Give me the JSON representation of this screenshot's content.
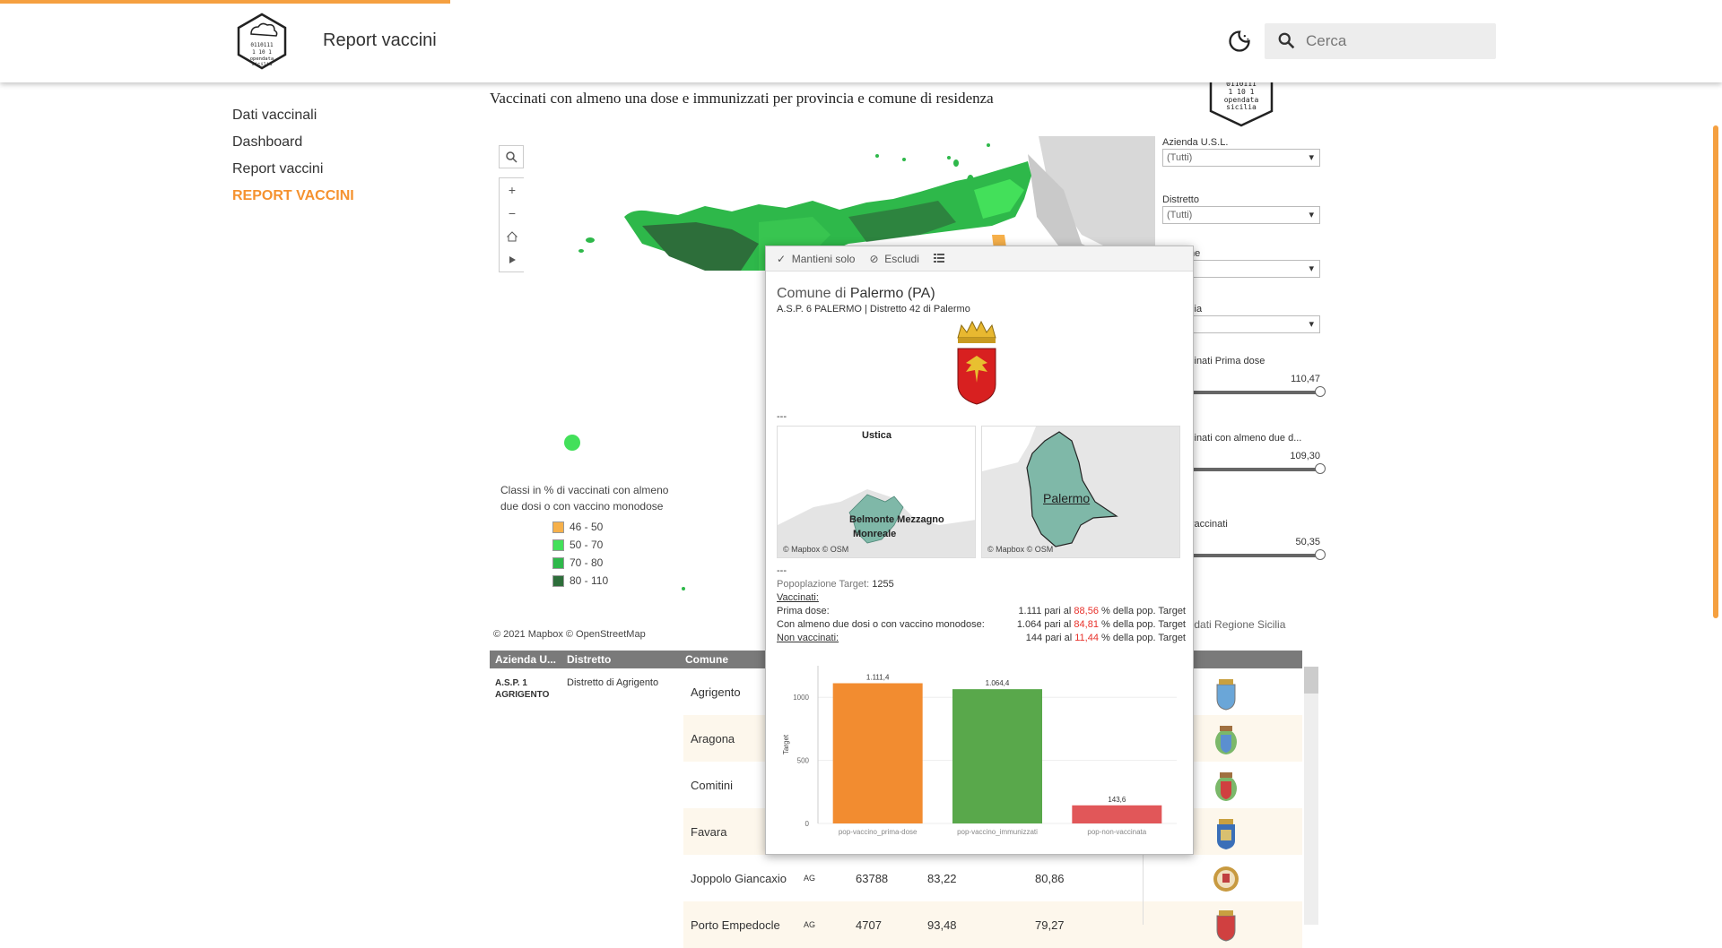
{
  "header": {
    "app_title": "Report vaccini",
    "logo_text": "opendata sicilia",
    "search_placeholder": "Cerca"
  },
  "sidebar": {
    "items": [
      {
        "label": "Dati vaccinali"
      },
      {
        "label": "Dashboard"
      },
      {
        "label": "Report vaccini"
      },
      {
        "label": "REPORT VACCINI"
      }
    ]
  },
  "report": {
    "subtitle": "Vaccinati con almeno una dose e immunizzati per provincia e comune di residenza",
    "map_attribution": "© 2021 Mapbox  © OpenStreetMap",
    "legend": {
      "title_line1": "Classi in % di vaccinati con almeno",
      "title_line2": "due dosi o con vaccino monodose",
      "items": [
        {
          "label": "46 - 50",
          "color": "#f6b04a"
        },
        {
          "label": "50 - 70",
          "color": "#43e05a"
        },
        {
          "label": "70 - 80",
          "color": "#2eb84a"
        },
        {
          "label": "80 - 110",
          "color": "#2d6e3a"
        }
      ]
    },
    "filters": {
      "asl_label": "Azienda U.S.L.",
      "asl_value": "(Tutti)",
      "distretto_label": "Distretto",
      "distretto_value": "(Tutti)",
      "comune_label": "ne",
      "provincia_label": "cia",
      "slider1_label": "cinati Prima dose",
      "slider1_value": "110,47",
      "slider2_label": "cinati con almeno due d...",
      "slider2_value": "109,30",
      "slider3_label": "vaccinati",
      "slider3_value": "50,35"
    },
    "source": "te dati Regione Sicilia",
    "table": {
      "headers": [
        "Azienda U...",
        "Distretto",
        "Comune"
      ],
      "asl": "A.S.P. 1 AGRIGENTO",
      "distretto": "Distretto di Agrigento",
      "rows": [
        {
          "comune": "Agrigento",
          "prov": "",
          "target": "",
          "pct1": "",
          "pct2": ""
        },
        {
          "comune": "Aragona",
          "prov": "",
          "target": "",
          "pct1": "",
          "pct2": ""
        },
        {
          "comune": "Comitini",
          "prov": "",
          "target": "",
          "pct1": "",
          "pct2": ""
        },
        {
          "comune": "Favara",
          "prov": "",
          "target": "",
          "pct1": "",
          "pct2": ""
        },
        {
          "comune": "Joppolo Giancaxio",
          "prov": "AG",
          "target": "63788",
          "pct1": "83,22",
          "pct2": "80,86"
        },
        {
          "comune": "Porto Empedocle",
          "prov": "AG",
          "target": "4707",
          "pct1": "93,48",
          "pct2": "79,27"
        }
      ]
    }
  },
  "tooltip": {
    "actions": {
      "keep": "Mantieni solo",
      "exclude": "Escludi"
    },
    "title_prefix": "Comune di",
    "title_name": "Palermo (PA)",
    "subtitle": "A.S.P. 6 PALERMO | Distretto 42 di Palermo",
    "dashes": "---",
    "map1_labels": {
      "top": "Ustica",
      "mid": "Belmonte Mezzagno",
      "low": "Monreale"
    },
    "map2_label": "Palermo",
    "map_attribution": "© Mapbox © OSM",
    "popolazione_label": "Popoplazione Target:",
    "popolazione_value": "1255",
    "vaccinati_label": "Vaccinati:",
    "prima_dose_label": "Prima dose:",
    "prima_dose_value": "1.111 pari al",
    "prima_dose_pct": "88,56",
    "con_almeno_label": "Con almeno due dosi o con vaccino monodose:",
    "con_almeno_value": "1.064 pari al",
    "con_almeno_pct": "84,81",
    "non_vaccinati_label": "Non vaccinati:",
    "non_vaccinati_value": "144 pari al",
    "non_vaccinati_pct": "11,44",
    "pct_suffix": "% della pop. Target",
    "pct_suffix_2": "%  della pop. Target"
  },
  "chart_data": {
    "type": "bar",
    "categories": [
      "pop-vaccino_prima-dose",
      "pop-vaccino_immunizzati",
      "pop-non-vaccinata"
    ],
    "values": [
      1111.4,
      1064.4,
      143.6
    ],
    "value_labels": [
      "1.111,4",
      "1.064,4",
      "143,6"
    ],
    "colors": [
      "#f28c30",
      "#59a84b",
      "#e15759"
    ],
    "ylabel": "Target",
    "yticks": [
      "0",
      "500",
      "1000"
    ],
    "ylim": [
      0,
      1250
    ]
  }
}
